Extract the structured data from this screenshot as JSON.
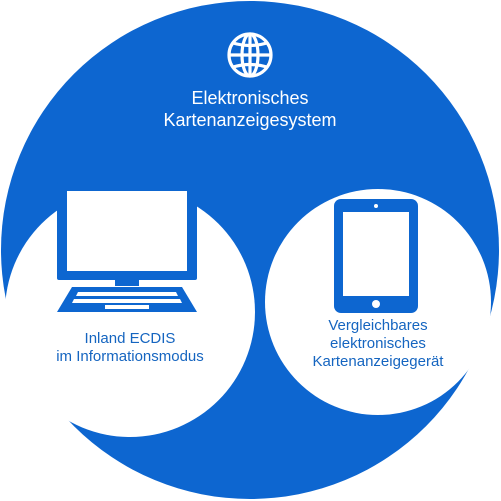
{
  "colors": {
    "primary": "#0d66d0",
    "background": "#ffffff",
    "inner_text": "#1565c0"
  },
  "outer_system": {
    "icon": "globe-icon",
    "title_line1": "Elektronisches",
    "title_line2": "Kartenanzeigesystem"
  },
  "left_device": {
    "icon": "computer-monitor-icon",
    "label_line1": "Inland ECDIS",
    "label_line2": "im Informationsmodus"
  },
  "right_device": {
    "icon": "tablet-icon",
    "label_line1": "Vergleichbares",
    "label_line2": "elektronisches",
    "label_line3": "Kartenanzeigegerät"
  }
}
